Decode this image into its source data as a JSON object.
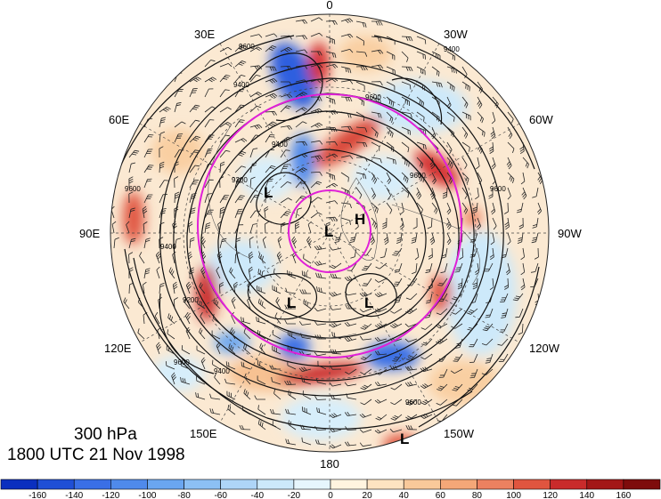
{
  "title": {
    "level": "300 hPa",
    "datetime": "1800 UTC 21 Nov 1998"
  },
  "longitude_labels": [
    "0",
    "30W",
    "60W",
    "90W",
    "120W",
    "150W",
    "180",
    "150E",
    "120E",
    "90E",
    "60E",
    "30E"
  ],
  "contour_labels": [
    "9600",
    "9400",
    "9600",
    "9400",
    "9600",
    "9400",
    "9200",
    "9600",
    "9600",
    "9400",
    "9200",
    "9600",
    "9600",
    "9400"
  ],
  "pressure_centers": [
    "L",
    "L",
    "H",
    "L",
    "L",
    "L"
  ],
  "colorbar": {
    "ticks": [
      "-160",
      "-140",
      "-120",
      "-100",
      "-80",
      "-60",
      "-40",
      "-20",
      "0",
      "20",
      "40",
      "60",
      "80",
      "100",
      "120",
      "140",
      "160"
    ],
    "colors": [
      "#0a2fbf",
      "#1f4fd6",
      "#3a6fe6",
      "#4f8aeb",
      "#6aa6f0",
      "#8cc0f4",
      "#aed5f7",
      "#cce9fa",
      "#e6f6fd",
      "#fff4df",
      "#fde3c1",
      "#f9c99a",
      "#f4a778",
      "#ec8160",
      "#e0553f",
      "#c92b2b",
      "#a31717",
      "#7e0c0c"
    ]
  },
  "colors": {
    "circle": "#e020d8",
    "contour": "#111111",
    "barb": "#222222"
  }
}
